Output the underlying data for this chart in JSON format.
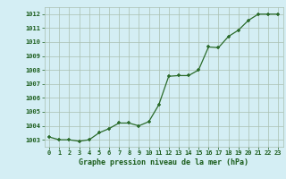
{
  "x": [
    0,
    1,
    2,
    3,
    4,
    5,
    6,
    7,
    8,
    9,
    10,
    11,
    12,
    13,
    14,
    15,
    16,
    17,
    18,
    19,
    20,
    21,
    22,
    23
  ],
  "y": [
    1003.2,
    1003.0,
    1003.0,
    1002.9,
    1003.0,
    1003.5,
    1003.8,
    1004.2,
    1004.2,
    1004.0,
    1004.3,
    1005.5,
    1007.55,
    1007.6,
    1007.6,
    1008.0,
    1009.65,
    1009.6,
    1010.4,
    1010.85,
    1011.55,
    1012.0,
    1012.0,
    1012.0
  ],
  "line_color": "#2a6b2a",
  "marker_color": "#2a6b2a",
  "bg_color": "#d4eef4",
  "grid_color": "#aabfb0",
  "xlabel": "Graphe pression niveau de la mer (hPa)",
  "xlabel_color": "#1a5c1a",
  "tick_color": "#1a5c1a",
  "ylim": [
    1002.5,
    1012.5
  ],
  "yticks": [
    1003,
    1004,
    1005,
    1006,
    1007,
    1008,
    1009,
    1010,
    1011,
    1012
  ],
  "xlim": [
    -0.5,
    23.5
  ],
  "xticks": [
    0,
    1,
    2,
    3,
    4,
    5,
    6,
    7,
    8,
    9,
    10,
    11,
    12,
    13,
    14,
    15,
    16,
    17,
    18,
    19,
    20,
    21,
    22,
    23
  ]
}
